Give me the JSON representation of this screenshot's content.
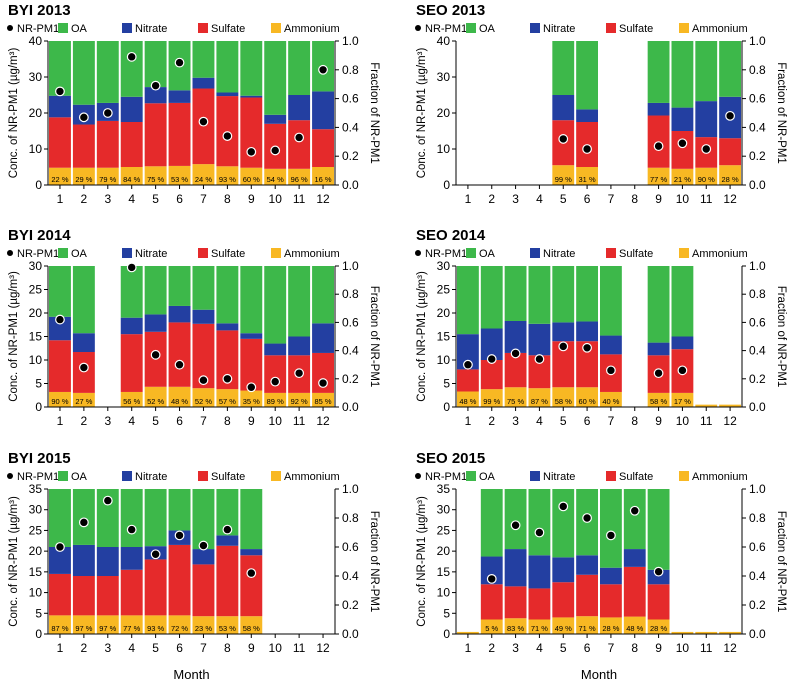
{
  "colors": {
    "oa": "#3db84a",
    "nitrate": "#233fa1",
    "sulfate": "#e52a2b",
    "ammonium": "#f8b823",
    "dot": "#000000"
  },
  "legend_labels": {
    "nrpm1": "NR-PM1",
    "oa": "OA",
    "nitrate": "Nitrate",
    "sulfate": "Sulfate",
    "ammonium": "Ammonium"
  },
  "xlabel": "Month",
  "ylabel": "Conc. of NR-PM1 (µg/m³)",
  "y2label": "Fraction of NR-PM1",
  "chart_data": [
    {
      "type": "bar",
      "title": "BYI 2013",
      "categories": [
        "1",
        "2",
        "3",
        "4",
        "5",
        "6",
        "7",
        "8",
        "9",
        "10",
        "11",
        "12"
      ],
      "ylim": [
        0,
        40
      ],
      "yticks": [
        "0",
        "10",
        "20",
        "30",
        "40"
      ],
      "y2ticks": [
        "0.0",
        "0.2",
        "0.4",
        "0.6",
        "0.8",
        "1.0"
      ],
      "ammonium": [
        4.8,
        4.8,
        4.8,
        5.0,
        5.2,
        5.3,
        5.8,
        5.2,
        4.8,
        4.5,
        4.5,
        5.0
      ],
      "sulfate": [
        14,
        12,
        13,
        12.5,
        17.5,
        17.5,
        21,
        19.5,
        19.5,
        12.5,
        13.5,
        10.5
      ],
      "nitrate": [
        6,
        5.5,
        5,
        7,
        4.5,
        3.5,
        3,
        1,
        0.5,
        2.5,
        7,
        10.5
      ],
      "oa": [
        15.2,
        17.7,
        17.2,
        15.5,
        12.8,
        13.7,
        10.2,
        14.3,
        15.2,
        20.5,
        15,
        14
      ],
      "fraction": [
        0.65,
        0.47,
        0.5,
        0.89,
        0.69,
        0.85,
        0.44,
        0.34,
        0.23,
        0.24,
        0.33,
        0.8
      ],
      "pct_labels": [
        "22 %",
        "29 %",
        "79 %",
        "84 %",
        "75 %",
        "53 %",
        "24 %",
        "93 %",
        "60 %",
        "54 %",
        "96 %",
        "16 %"
      ]
    },
    {
      "type": "bar",
      "title": "SEO 2013",
      "categories": [
        "1",
        "2",
        "3",
        "4",
        "5",
        "6",
        "7",
        "8",
        "9",
        "10",
        "11",
        "12"
      ],
      "ylim": [
        0,
        40
      ],
      "yticks": [
        "0",
        "10",
        "20",
        "30",
        "40"
      ],
      "y2ticks": [
        "0.0",
        "0.2",
        "0.4",
        "0.6",
        "0.8",
        "1.0"
      ],
      "ammonium": [
        null,
        null,
        null,
        null,
        5.5,
        5,
        null,
        null,
        4.8,
        4.5,
        4.8,
        5.5
      ],
      "sulfate": [
        null,
        null,
        null,
        null,
        12.5,
        12.5,
        null,
        null,
        14.5,
        10.5,
        8.5,
        7.5
      ],
      "nitrate": [
        null,
        null,
        null,
        null,
        7,
        3.5,
        null,
        null,
        3.5,
        6.5,
        10,
        11.5
      ],
      "oa": [
        null,
        null,
        null,
        null,
        15,
        19,
        null,
        null,
        17.2,
        18.5,
        16.7,
        15.5
      ],
      "fraction": [
        null,
        null,
        null,
        null,
        0.32,
        0.25,
        null,
        null,
        0.27,
        0.29,
        0.25,
        0.48
      ],
      "pct_labels": [
        "",
        "",
        "",
        "",
        "99 %",
        "31 %",
        "",
        "",
        "77 %",
        "21 %",
        "90 %",
        "28 %"
      ]
    },
    {
      "type": "bar",
      "title": "BYI 2014",
      "categories": [
        "1",
        "2",
        "3",
        "4",
        "5",
        "6",
        "7",
        "8",
        "9",
        "10",
        "11",
        "12"
      ],
      "ylim": [
        0,
        30
      ],
      "yticks": [
        "0",
        "5",
        "10",
        "15",
        "20",
        "25",
        "30"
      ],
      "y2ticks": [
        "0.0",
        "0.2",
        "0.4",
        "0.6",
        "0.8",
        "1.0"
      ],
      "ammonium": [
        3.2,
        3.0,
        null,
        3.2,
        4.3,
        4.3,
        4.0,
        3.8,
        3.5,
        3.0,
        3.0,
        3.0
      ],
      "sulfate": [
        11,
        8.7,
        null,
        12.3,
        11.7,
        13.7,
        13.7,
        12.5,
        11,
        8,
        8,
        8.5
      ],
      "nitrate": [
        5,
        4,
        null,
        3.5,
        3.7,
        3.5,
        3,
        1.5,
        1.2,
        2.5,
        4,
        6.3
      ],
      "oa": [
        10.8,
        14.3,
        null,
        11,
        10.3,
        8.5,
        9.3,
        12.2,
        14.3,
        16.5,
        15,
        12.2
      ],
      "fraction": [
        0.62,
        0.28,
        null,
        0.99,
        0.37,
        0.3,
        0.19,
        0.2,
        0.14,
        0.18,
        0.24,
        0.17
      ],
      "pct_labels": [
        "90 %",
        "27 %",
        "",
        "56 %",
        "52 %",
        "48 %",
        "52 %",
        "57 %",
        "35 %",
        "89 %",
        "92 %",
        "85 %"
      ]
    },
    {
      "type": "bar",
      "title": "SEO 2014",
      "categories": [
        "1",
        "2",
        "3",
        "4",
        "5",
        "6",
        "7",
        "8",
        "9",
        "10",
        "11",
        "12"
      ],
      "ylim": [
        0,
        30
      ],
      "yticks": [
        "0",
        "5",
        "10",
        "15",
        "20",
        "25",
        "30"
      ],
      "y2ticks": [
        "0.0",
        "0.2",
        "0.4",
        "0.6",
        "0.8",
        "1.0"
      ],
      "ammonium": [
        3.3,
        3.8,
        4.2,
        4.0,
        4.2,
        4.2,
        3.2,
        null,
        3.0,
        3.0,
        0.5,
        0.5
      ],
      "sulfate": [
        4.7,
        6.2,
        7.3,
        7,
        9.8,
        9.8,
        8,
        null,
        8,
        9.3,
        null,
        null
      ],
      "nitrate": [
        7.5,
        6.7,
        6.8,
        6.7,
        4,
        4.2,
        4,
        null,
        2.7,
        2.7,
        null,
        null
      ],
      "oa": [
        14.5,
        13.3,
        11.7,
        12.3,
        12,
        11.8,
        14.8,
        null,
        16.3,
        15,
        null,
        null
      ],
      "fraction": [
        0.3,
        0.34,
        0.38,
        0.34,
        0.43,
        0.42,
        0.26,
        null,
        0.24,
        0.26,
        null,
        null
      ],
      "pct_labels": [
        "48 %",
        "99 %",
        "75 %",
        "87 %",
        "58 %",
        "60 %",
        "40 %",
        "",
        "58 %",
        "17 %",
        "",
        ""
      ]
    },
    {
      "type": "bar",
      "title": "BYI 2015",
      "categories": [
        "1",
        "2",
        "3",
        "4",
        "5",
        "6",
        "7",
        "8",
        "9",
        "10",
        "11",
        "12"
      ],
      "ylim": [
        0,
        35
      ],
      "yticks": [
        "0",
        "5",
        "10",
        "15",
        "20",
        "25",
        "30",
        "35"
      ],
      "y2ticks": [
        "0.0",
        "0.2",
        "0.4",
        "0.6",
        "0.8",
        "1.0"
      ],
      "ammonium": [
        4.5,
        4.5,
        4.5,
        4.5,
        4.5,
        4.5,
        4.3,
        4.3,
        4.3,
        null,
        null,
        null
      ],
      "sulfate": [
        10,
        9.5,
        9.5,
        11,
        13.5,
        17,
        12.5,
        17,
        14.7,
        null,
        null,
        null
      ],
      "nitrate": [
        6.5,
        7.5,
        7,
        5.5,
        3.2,
        3.5,
        3.7,
        2.5,
        1.5,
        null,
        null,
        null
      ],
      "oa": [
        14,
        13.5,
        14,
        14,
        13.8,
        10,
        14.5,
        11.2,
        14.5,
        null,
        null,
        null
      ],
      "fraction": [
        0.6,
        0.77,
        0.92,
        0.72,
        0.55,
        0.68,
        0.61,
        0.72,
        0.42,
        null,
        null,
        null
      ],
      "pct_labels": [
        "87 %",
        "97 %",
        "97 %",
        "77 %",
        "93 %",
        "72 %",
        "23 %",
        "53 %",
        "58 %",
        "",
        "",
        ""
      ]
    },
    {
      "type": "bar",
      "title": "SEO 2015",
      "categories": [
        "1",
        "2",
        "3",
        "4",
        "5",
        "6",
        "7",
        "8",
        "9",
        "10",
        "11",
        "12"
      ],
      "ylim": [
        0,
        35
      ],
      "yticks": [
        "0",
        "5",
        "10",
        "15",
        "20",
        "25",
        "30",
        "35"
      ],
      "y2ticks": [
        "0.0",
        "0.2",
        "0.4",
        "0.6",
        "0.8",
        "1.0"
      ],
      "ammonium": [
        0.5,
        3.5,
        3.8,
        3.5,
        4.0,
        4.3,
        4.0,
        4.2,
        3.5,
        0.5,
        0.5,
        0.5
      ],
      "sulfate": [
        null,
        8.5,
        7.7,
        7.5,
        8.5,
        10,
        8,
        12,
        8.5,
        null,
        null,
        null
      ],
      "nitrate": [
        null,
        6.7,
        9,
        8,
        6,
        4.7,
        4,
        4.3,
        3.5,
        null,
        null,
        null
      ],
      "oa": [
        null,
        16.3,
        14.5,
        16,
        16.5,
        16,
        19,
        14.5,
        19.5,
        null,
        null,
        null
      ],
      "fraction": [
        null,
        0.38,
        0.75,
        0.7,
        0.88,
        0.8,
        0.68,
        0.85,
        0.43,
        null,
        null,
        null
      ],
      "pct_labels": [
        "",
        "5 %",
        "83 %",
        "71 %",
        "49 %",
        "71 %",
        "28 %",
        "48 %",
        "28 %",
        "",
        "",
        ""
      ]
    }
  ]
}
